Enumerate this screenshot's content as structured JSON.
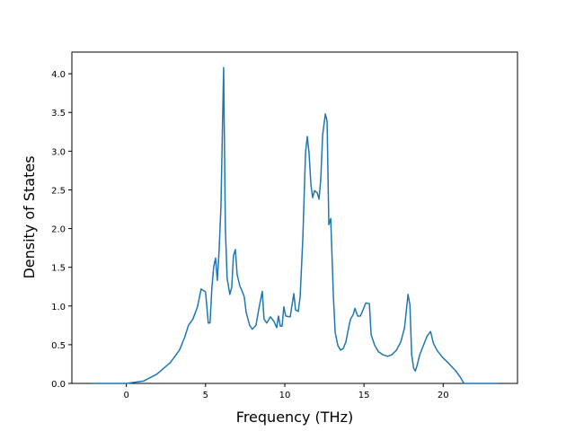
{
  "chart_data": {
    "type": "line",
    "x_label": "Frequency (THz)",
    "y_label": "Density of States",
    "x": [
      -2.16,
      0,
      1.08,
      1.93,
      2.78,
      3.35,
      3.69,
      3.92,
      4.2,
      4.49,
      4.72,
      5.0,
      5.17,
      5.28,
      5.4,
      5.51,
      5.63,
      5.74,
      5.85,
      5.97,
      6.14,
      6.25,
      6.36,
      6.53,
      6.65,
      6.76,
      6.88,
      6.99,
      7.16,
      7.33,
      7.44,
      7.56,
      7.78,
      7.95,
      8.18,
      8.35,
      8.58,
      8.69,
      8.86,
      9.09,
      9.32,
      9.49,
      9.6,
      9.72,
      9.83,
      9.94,
      10.06,
      10.34,
      10.57,
      10.68,
      10.85,
      10.97,
      11.14,
      11.31,
      11.42,
      11.53,
      11.65,
      11.76,
      11.88,
      12.05,
      12.16,
      12.27,
      12.39,
      12.56,
      12.67,
      12.78,
      12.9,
      13.07,
      13.18,
      13.35,
      13.52,
      13.69,
      13.86,
      14.03,
      14.15,
      14.32,
      14.43,
      14.6,
      14.77,
      14.94,
      15.11,
      15.34,
      15.45,
      15.68,
      15.91,
      16.19,
      16.48,
      16.76,
      17.05,
      17.33,
      17.56,
      17.78,
      17.9,
      18.01,
      18.13,
      18.24,
      18.35,
      18.52,
      18.75,
      18.98,
      19.2,
      19.38,
      19.6,
      19.94,
      20.34,
      20.8,
      21.08,
      21.31,
      23.41
    ],
    "series": [
      {
        "color": "#1f77b4",
        "values": [
          0,
          0,
          0.03,
          0.12,
          0.27,
          0.43,
          0.6,
          0.75,
          0.83,
          0.99,
          1.22,
          1.18,
          0.78,
          0.78,
          1.24,
          1.5,
          1.62,
          1.33,
          1.7,
          2.28,
          4.08,
          2.0,
          1.36,
          1.15,
          1.24,
          1.65,
          1.73,
          1.41,
          1.26,
          1.18,
          1.12,
          0.92,
          0.75,
          0.7,
          0.75,
          0.95,
          1.19,
          0.83,
          0.78,
          0.86,
          0.8,
          0.72,
          0.87,
          0.74,
          0.74,
          0.99,
          0.87,
          0.86,
          1.16,
          0.95,
          0.93,
          1.12,
          1.88,
          2.98,
          3.19,
          2.98,
          2.57,
          2.4,
          2.49,
          2.46,
          2.38,
          2.63,
          3.21,
          3.48,
          3.39,
          2.05,
          2.13,
          1.12,
          0.66,
          0.49,
          0.43,
          0.45,
          0.54,
          0.72,
          0.83,
          0.89,
          0.97,
          0.87,
          0.87,
          0.95,
          1.04,
          1.03,
          0.63,
          0.49,
          0.41,
          0.37,
          0.35,
          0.37,
          0.43,
          0.54,
          0.72,
          1.15,
          1.01,
          0.37,
          0.2,
          0.16,
          0.23,
          0.37,
          0.49,
          0.61,
          0.67,
          0.52,
          0.43,
          0.34,
          0.26,
          0.16,
          0.08,
          0,
          0
        ]
      }
    ],
    "xlim": [
      -3.44,
      24.69
    ],
    "xticks": [
      0,
      5,
      10,
      15,
      20
    ],
    "ylim": [
      0,
      4.28
    ],
    "yticks": [
      {
        "value": 0,
        "label": "0.0"
      },
      {
        "value": 0.5,
        "label": "0.5"
      },
      {
        "value": 1,
        "label": "1.0"
      },
      {
        "value": 1.5,
        "label": "1.5"
      },
      {
        "value": 2,
        "label": "2.0"
      },
      {
        "value": 2.5,
        "label": "2.5"
      },
      {
        "value": 3,
        "label": "3.0"
      },
      {
        "value": 3.5,
        "label": "3.5"
      },
      {
        "value": 4,
        "label": "4.0"
      }
    ]
  }
}
